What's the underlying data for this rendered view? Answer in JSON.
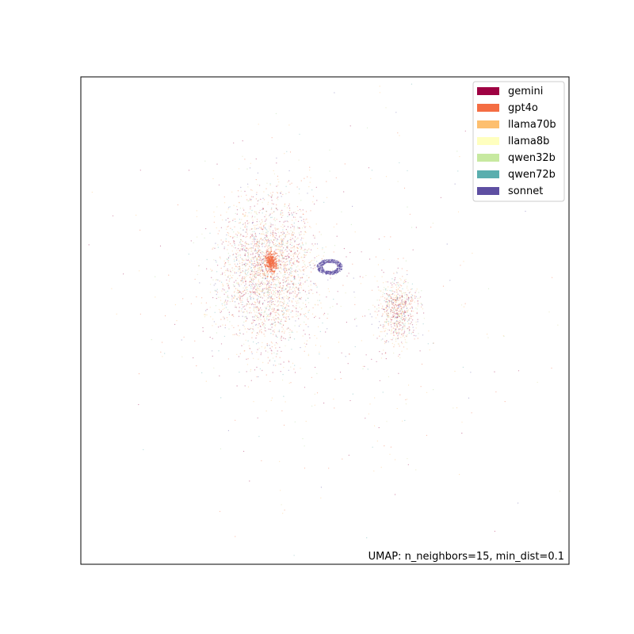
{
  "chart_data": {
    "type": "scatter",
    "title": "",
    "xlabel": "",
    "ylabel": "",
    "xticks": false,
    "yticks": false,
    "grid": false,
    "legend_placement": "top-right",
    "annotation": "UMAP: n_neighbors=15, min_dist=0.1",
    "series": [
      {
        "name": "gemini",
        "color": "#9e0142"
      },
      {
        "name": "gpt4o",
        "color": "#f46d43"
      },
      {
        "name": "llama70b",
        "color": "#fdbf6f"
      },
      {
        "name": "llama8b",
        "color": "#ffffbf"
      },
      {
        "name": "qwen32b",
        "color": "#c7e9a0"
      },
      {
        "name": "qwen72b",
        "color": "#5aaeae"
      },
      {
        "name": "sonnet",
        "color": "#5e4fa2"
      }
    ],
    "clusters": [
      {
        "series": "mixed",
        "center": [
          0.38,
          0.6
        ],
        "spread": [
          0.09,
          0.14
        ],
        "description": "main dense cloud"
      },
      {
        "series": "sonnet",
        "center": [
          0.51,
          0.61
        ],
        "spread": [
          0.025,
          0.015
        ]
      },
      {
        "series": "gpt4o",
        "center": [
          0.39,
          0.62
        ],
        "spread": [
          0.01,
          0.02
        ]
      },
      {
        "series": "mixed",
        "center": [
          0.65,
          0.52
        ],
        "spread": [
          0.035,
          0.06
        ],
        "description": "right cluster"
      }
    ]
  }
}
